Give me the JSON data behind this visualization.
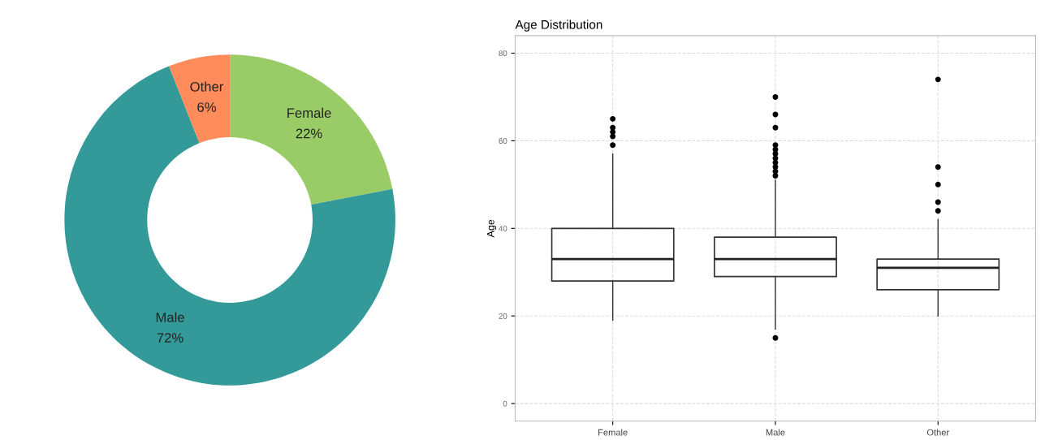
{
  "chart_data": [
    {
      "type": "donut",
      "categories": [
        "Female",
        "Male",
        "Other"
      ],
      "values": [
        22,
        72,
        6
      ],
      "colors": [
        "#99cc66",
        "#339999",
        "#ff8c5a"
      ],
      "value_labels": [
        "22%",
        "72%",
        "6%"
      ]
    },
    {
      "type": "box",
      "title": "Age Distribution",
      "ylabel": "Age",
      "categories": [
        "Female",
        "Male",
        "Other"
      ],
      "boxes": [
        {
          "low": 19,
          "q1": 28,
          "median": 33,
          "q3": 40,
          "high": 57,
          "outliers": [
            59,
            61,
            62,
            63,
            65
          ]
        },
        {
          "low": 17,
          "q1": 29,
          "median": 33,
          "q3": 38,
          "high": 51,
          "outliers": [
            15,
            52,
            53,
            54,
            55,
            56,
            57,
            58,
            59,
            63,
            66,
            70
          ]
        },
        {
          "low": 20,
          "q1": 26,
          "median": 31,
          "q3": 33,
          "high": 42,
          "outliers": [
            44,
            46,
            50,
            54,
            74
          ]
        }
      ],
      "ylim": [
        -4,
        84
      ],
      "yticks": [
        0,
        20,
        40,
        60,
        80
      ],
      "grid": true
    }
  ]
}
